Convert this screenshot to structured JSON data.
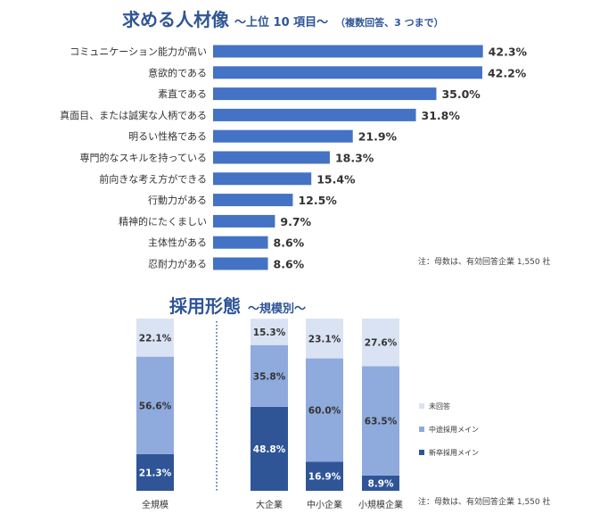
{
  "chart_data": [
    {
      "type": "bar",
      "orientation": "horizontal",
      "title": "求める人材像",
      "subtitle": "～上位 10 項目～",
      "subtitle_note": "（複数回答、3 つまで）",
      "value_suffix": "%",
      "color": "#4472c4",
      "categories": [
        "コミュニケーション能力が高い",
        "意欲的である",
        "素直である",
        "真面目、または誠実な人柄である",
        "明るい性格である",
        "専門的なスキルを持っている",
        "前向きな考え方ができる",
        "行動力がある",
        "精神的にたくましい",
        "主体性がある",
        "忍耐力がある"
      ],
      "values": [
        42.3,
        42.2,
        35.0,
        31.8,
        21.9,
        18.3,
        15.4,
        12.5,
        9.7,
        8.6,
        8.6
      ],
      "value_labels": [
        "42.3%",
        "42.2%",
        "35.0%",
        "31.8%",
        "21.9%",
        "18.3%",
        "15.4%",
        "12.5%",
        "9.7%",
        "8.6%",
        "8.6%"
      ],
      "xlim": [
        0,
        45
      ],
      "note": "注：母数は、有効回答企業 1,550 社"
    },
    {
      "type": "bar",
      "stacked": true,
      "percent": true,
      "title": "採用形態",
      "subtitle": "～規模別～",
      "categories": [
        "全規模",
        "大企業",
        "中小企業",
        "小規模企業"
      ],
      "series": [
        {
          "name": "新卒採用メイン",
          "color": "#2f5597",
          "values": [
            21.3,
            48.8,
            16.9,
            8.9
          ],
          "labels": [
            "21.3%",
            "48.8%",
            "16.9%",
            "8.9%"
          ]
        },
        {
          "name": "中途採用メイン",
          "color": "#8faadc",
          "values": [
            56.6,
            35.8,
            60.0,
            63.5
          ],
          "labels": [
            "56.6%",
            "35.8%",
            "60.0%",
            "63.5%"
          ]
        },
        {
          "name": "未回答",
          "color": "#dae3f3",
          "values": [
            22.1,
            15.3,
            23.1,
            27.6
          ],
          "labels": [
            "22.1%",
            "15.3%",
            "23.1%",
            "27.6%"
          ]
        }
      ],
      "legend_order": [
        "未回答",
        "中途採用メイン",
        "新卒採用メイン"
      ],
      "legend_position": "right",
      "ylim": [
        0,
        100
      ],
      "note": "注：母数は、有効回答企業 1,550 社"
    }
  ]
}
